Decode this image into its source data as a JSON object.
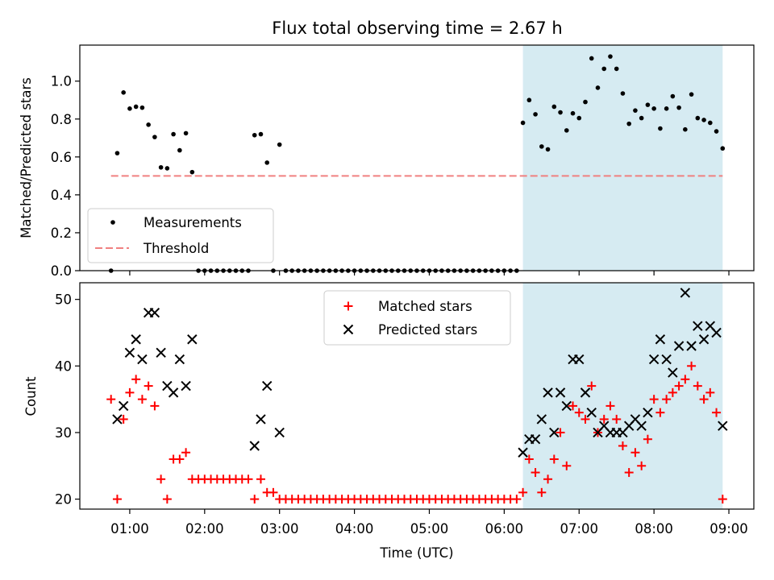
{
  "title": "Flux total observing time = 2.67 h",
  "colors": {
    "measurement": "#000000",
    "threshold": "#f08080",
    "matched": "#ff0000",
    "predicted": "#000000",
    "shade": "#add8e6"
  },
  "chart_data": [
    {
      "type": "scatter",
      "ylabel": "Matched/Predicted stars",
      "ylim": [
        0,
        1.19
      ],
      "yticks": [
        0.0,
        0.2,
        0.4,
        0.6,
        0.8,
        1.0
      ],
      "ytick_labels": [
        "0.0",
        "0.2",
        "0.4",
        "0.6",
        "0.8",
        "1.0"
      ],
      "shaded_span": [
        "06:15",
        "08:55"
      ],
      "legend": {
        "placement": "lower-left",
        "entries": [
          "Measurements",
          "Threshold"
        ]
      },
      "series": [
        {
          "name": "Measurements",
          "marker": "dot",
          "x": [
            "00:45",
            "00:50",
            "00:55",
            "01:00",
            "01:05",
            "01:10",
            "01:15",
            "01:20",
            "01:25",
            "01:30",
            "01:35",
            "01:40",
            "01:45",
            "01:50",
            "01:55",
            "02:00",
            "02:05",
            "02:10",
            "02:15",
            "02:20",
            "02:25",
            "02:30",
            "02:35",
            "02:40",
            "02:45",
            "02:50",
            "02:55",
            "03:00",
            "03:05",
            "03:10",
            "03:15",
            "03:20",
            "03:25",
            "03:30",
            "03:35",
            "03:40",
            "03:45",
            "03:50",
            "03:55",
            "04:00",
            "04:05",
            "04:10",
            "04:15",
            "04:20",
            "04:25",
            "04:30",
            "04:35",
            "04:40",
            "04:45",
            "04:50",
            "04:55",
            "05:00",
            "05:05",
            "05:10",
            "05:15",
            "05:20",
            "05:25",
            "05:30",
            "05:35",
            "05:40",
            "05:45",
            "05:50",
            "05:55",
            "06:00",
            "06:05",
            "06:10",
            "06:15",
            "06:20",
            "06:25",
            "06:30",
            "06:35",
            "06:40",
            "06:45",
            "06:50",
            "06:55",
            "07:00",
            "07:05",
            "07:10",
            "07:15",
            "07:20",
            "07:25",
            "07:30",
            "07:35",
            "07:40",
            "07:45",
            "07:50",
            "07:55",
            "08:00",
            "08:05",
            "08:10",
            "08:15",
            "08:20",
            "08:25",
            "08:30",
            "08:35",
            "08:40",
            "08:45",
            "08:50",
            "08:55"
          ],
          "y": [
            0.0,
            0.62,
            0.94,
            0.855,
            0.865,
            0.86,
            0.77,
            0.705,
            0.545,
            0.54,
            0.72,
            0.635,
            0.725,
            0.52,
            0.0,
            0.0,
            0.0,
            0.0,
            0.0,
            0.0,
            0.0,
            0.0,
            0.0,
            0.715,
            0.72,
            0.57,
            0.0,
            0.665,
            0.0,
            0.0,
            0.0,
            0.0,
            0.0,
            0.0,
            0.0,
            0.0,
            0.0,
            0.0,
            0.0,
            0.0,
            0.0,
            0.0,
            0.0,
            0.0,
            0.0,
            0.0,
            0.0,
            0.0,
            0.0,
            0.0,
            0.0,
            0.0,
            0.0,
            0.0,
            0.0,
            0.0,
            0.0,
            0.0,
            0.0,
            0.0,
            0.0,
            0.0,
            0.0,
            0.0,
            0.0,
            0.0,
            0.78,
            0.9,
            0.825,
            0.655,
            0.64,
            0.865,
            0.835,
            0.74,
            0.83,
            0.805,
            0.89,
            1.12,
            0.965,
            1.065,
            1.13,
            1.065,
            0.935,
            0.775,
            0.845,
            0.805,
            0.875,
            0.855,
            0.75,
            0.855,
            0.92,
            0.86,
            0.745,
            0.93,
            0.805,
            0.795,
            0.78,
            0.735,
            0.645
          ]
        },
        {
          "name": "Threshold",
          "style": "dashed",
          "x": [
            "00:45",
            "08:55"
          ],
          "y": [
            0.5,
            0.5
          ]
        }
      ]
    },
    {
      "type": "scatter",
      "xlabel": "Time (UTC)",
      "ylabel": "Count",
      "ylim": [
        18.5,
        52.5
      ],
      "yticks": [
        20,
        30,
        40,
        50
      ],
      "ytick_labels": [
        "20",
        "30",
        "40",
        "50"
      ],
      "xlim": [
        "00:20",
        "09:20"
      ],
      "xticks": [
        "01:00",
        "02:00",
        "03:00",
        "04:00",
        "05:00",
        "06:00",
        "07:00",
        "08:00",
        "09:00"
      ],
      "xtick_labels": [
        "01:00",
        "02:00",
        "03:00",
        "04:00",
        "05:00",
        "06:00",
        "07:00",
        "08:00",
        "09:00"
      ],
      "shaded_span": [
        "06:15",
        "08:55"
      ],
      "legend": {
        "placement": "upper-center",
        "entries": [
          "Matched stars",
          "Predicted stars"
        ]
      },
      "series": [
        {
          "name": "Matched stars",
          "marker": "plus",
          "x": [
            "00:45",
            "00:50",
            "00:55",
            "01:00",
            "01:05",
            "01:10",
            "01:15",
            "01:20",
            "01:25",
            "01:30",
            "01:35",
            "01:40",
            "01:45",
            "01:50",
            "01:55",
            "02:00",
            "02:05",
            "02:10",
            "02:15",
            "02:20",
            "02:25",
            "02:30",
            "02:35",
            "02:40",
            "02:45",
            "02:50",
            "02:55",
            "03:00",
            "03:05",
            "03:10",
            "03:15",
            "03:20",
            "03:25",
            "03:30",
            "03:35",
            "03:40",
            "03:45",
            "03:50",
            "03:55",
            "04:00",
            "04:05",
            "04:10",
            "04:15",
            "04:20",
            "04:25",
            "04:30",
            "04:35",
            "04:40",
            "04:45",
            "04:50",
            "04:55",
            "05:00",
            "05:05",
            "05:10",
            "05:15",
            "05:20",
            "05:25",
            "05:30",
            "05:35",
            "05:40",
            "05:45",
            "05:50",
            "05:55",
            "06:00",
            "06:05",
            "06:10",
            "06:15",
            "06:20",
            "06:25",
            "06:30",
            "06:35",
            "06:40",
            "06:45",
            "06:50",
            "06:55",
            "07:00",
            "07:05",
            "07:10",
            "07:15",
            "07:20",
            "07:25",
            "07:30",
            "07:35",
            "07:40",
            "07:45",
            "07:50",
            "07:55",
            "08:00",
            "08:05",
            "08:10",
            "08:15",
            "08:20",
            "08:25",
            "08:30",
            "08:35",
            "08:40",
            "08:45",
            "08:50",
            "08:55"
          ],
          "y": [
            35,
            20,
            32,
            36,
            38,
            35,
            37,
            34,
            23,
            20,
            26,
            26,
            27,
            23,
            23,
            23,
            23,
            23,
            23,
            23,
            23,
            23,
            23,
            20,
            23,
            21,
            21,
            20,
            20,
            20,
            20,
            20,
            20,
            20,
            20,
            20,
            20,
            20,
            20,
            20,
            20,
            20,
            20,
            20,
            20,
            20,
            20,
            20,
            20,
            20,
            20,
            20,
            20,
            20,
            20,
            20,
            20,
            20,
            20,
            20,
            20,
            20,
            20,
            20,
            20,
            20,
            21,
            26,
            24,
            21,
            23,
            26,
            30,
            25,
            34,
            33,
            32,
            37,
            30,
            32,
            34,
            32,
            28,
            24,
            27,
            25,
            29,
            35,
            33,
            35,
            36,
            37,
            38,
            40,
            37,
            35,
            36,
            33,
            20
          ]
        },
        {
          "name": "Predicted stars",
          "marker": "x",
          "x": [
            "00:50",
            "00:55",
            "01:00",
            "01:05",
            "01:10",
            "01:15",
            "01:20",
            "01:25",
            "01:30",
            "01:35",
            "01:40",
            "01:45",
            "01:50",
            "02:40",
            "02:45",
            "02:50",
            "03:00",
            "06:15",
            "06:20",
            "06:25",
            "06:30",
            "06:35",
            "06:40",
            "06:45",
            "06:50",
            "06:55",
            "07:00",
            "07:05",
            "07:10",
            "07:15",
            "07:20",
            "07:25",
            "07:30",
            "07:35",
            "07:40",
            "07:45",
            "07:50",
            "07:55",
            "08:00",
            "08:05",
            "08:10",
            "08:15",
            "08:20",
            "08:25",
            "08:30",
            "08:35",
            "08:40",
            "08:45",
            "08:50",
            "08:55"
          ],
          "y": [
            32,
            34,
            42,
            44,
            41,
            48,
            48,
            42,
            37,
            36,
            41,
            37,
            44,
            28,
            32,
            37,
            30,
            27,
            29,
            29,
            32,
            36,
            30,
            36,
            34,
            41,
            41,
            36,
            33,
            30,
            31,
            30,
            30,
            30,
            31,
            32,
            31,
            33,
            41,
            44,
            41,
            39,
            43,
            51,
            43,
            46,
            44,
            46,
            45,
            31
          ]
        }
      ]
    }
  ]
}
